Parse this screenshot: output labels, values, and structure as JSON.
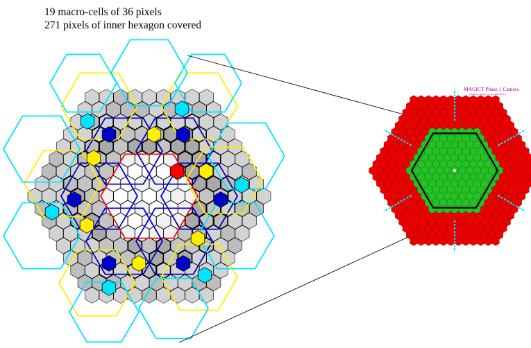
{
  "captions": {
    "line1": "19 macro-cells of 36 pixels",
    "line2": "271 pixels of inner hexagon covered"
  },
  "camera": {
    "title": "MAGICT Phase 1 Camera",
    "subtitle": "CAMERA display code 01/1998, D.Petry"
  },
  "colors": {
    "outline_inner": "#000000",
    "pixel_fill_light": "#d3d3d3",
    "pixel_fill_dark": "#a9a9a9",
    "macro_cyan": "#00e5ff",
    "macro_yellow": "#ffee00",
    "macro_blue": "#0000cc",
    "macro_red": "#ff0000",
    "camera_outer": "#ee0000",
    "camera_inner": "#22c322"
  }
}
